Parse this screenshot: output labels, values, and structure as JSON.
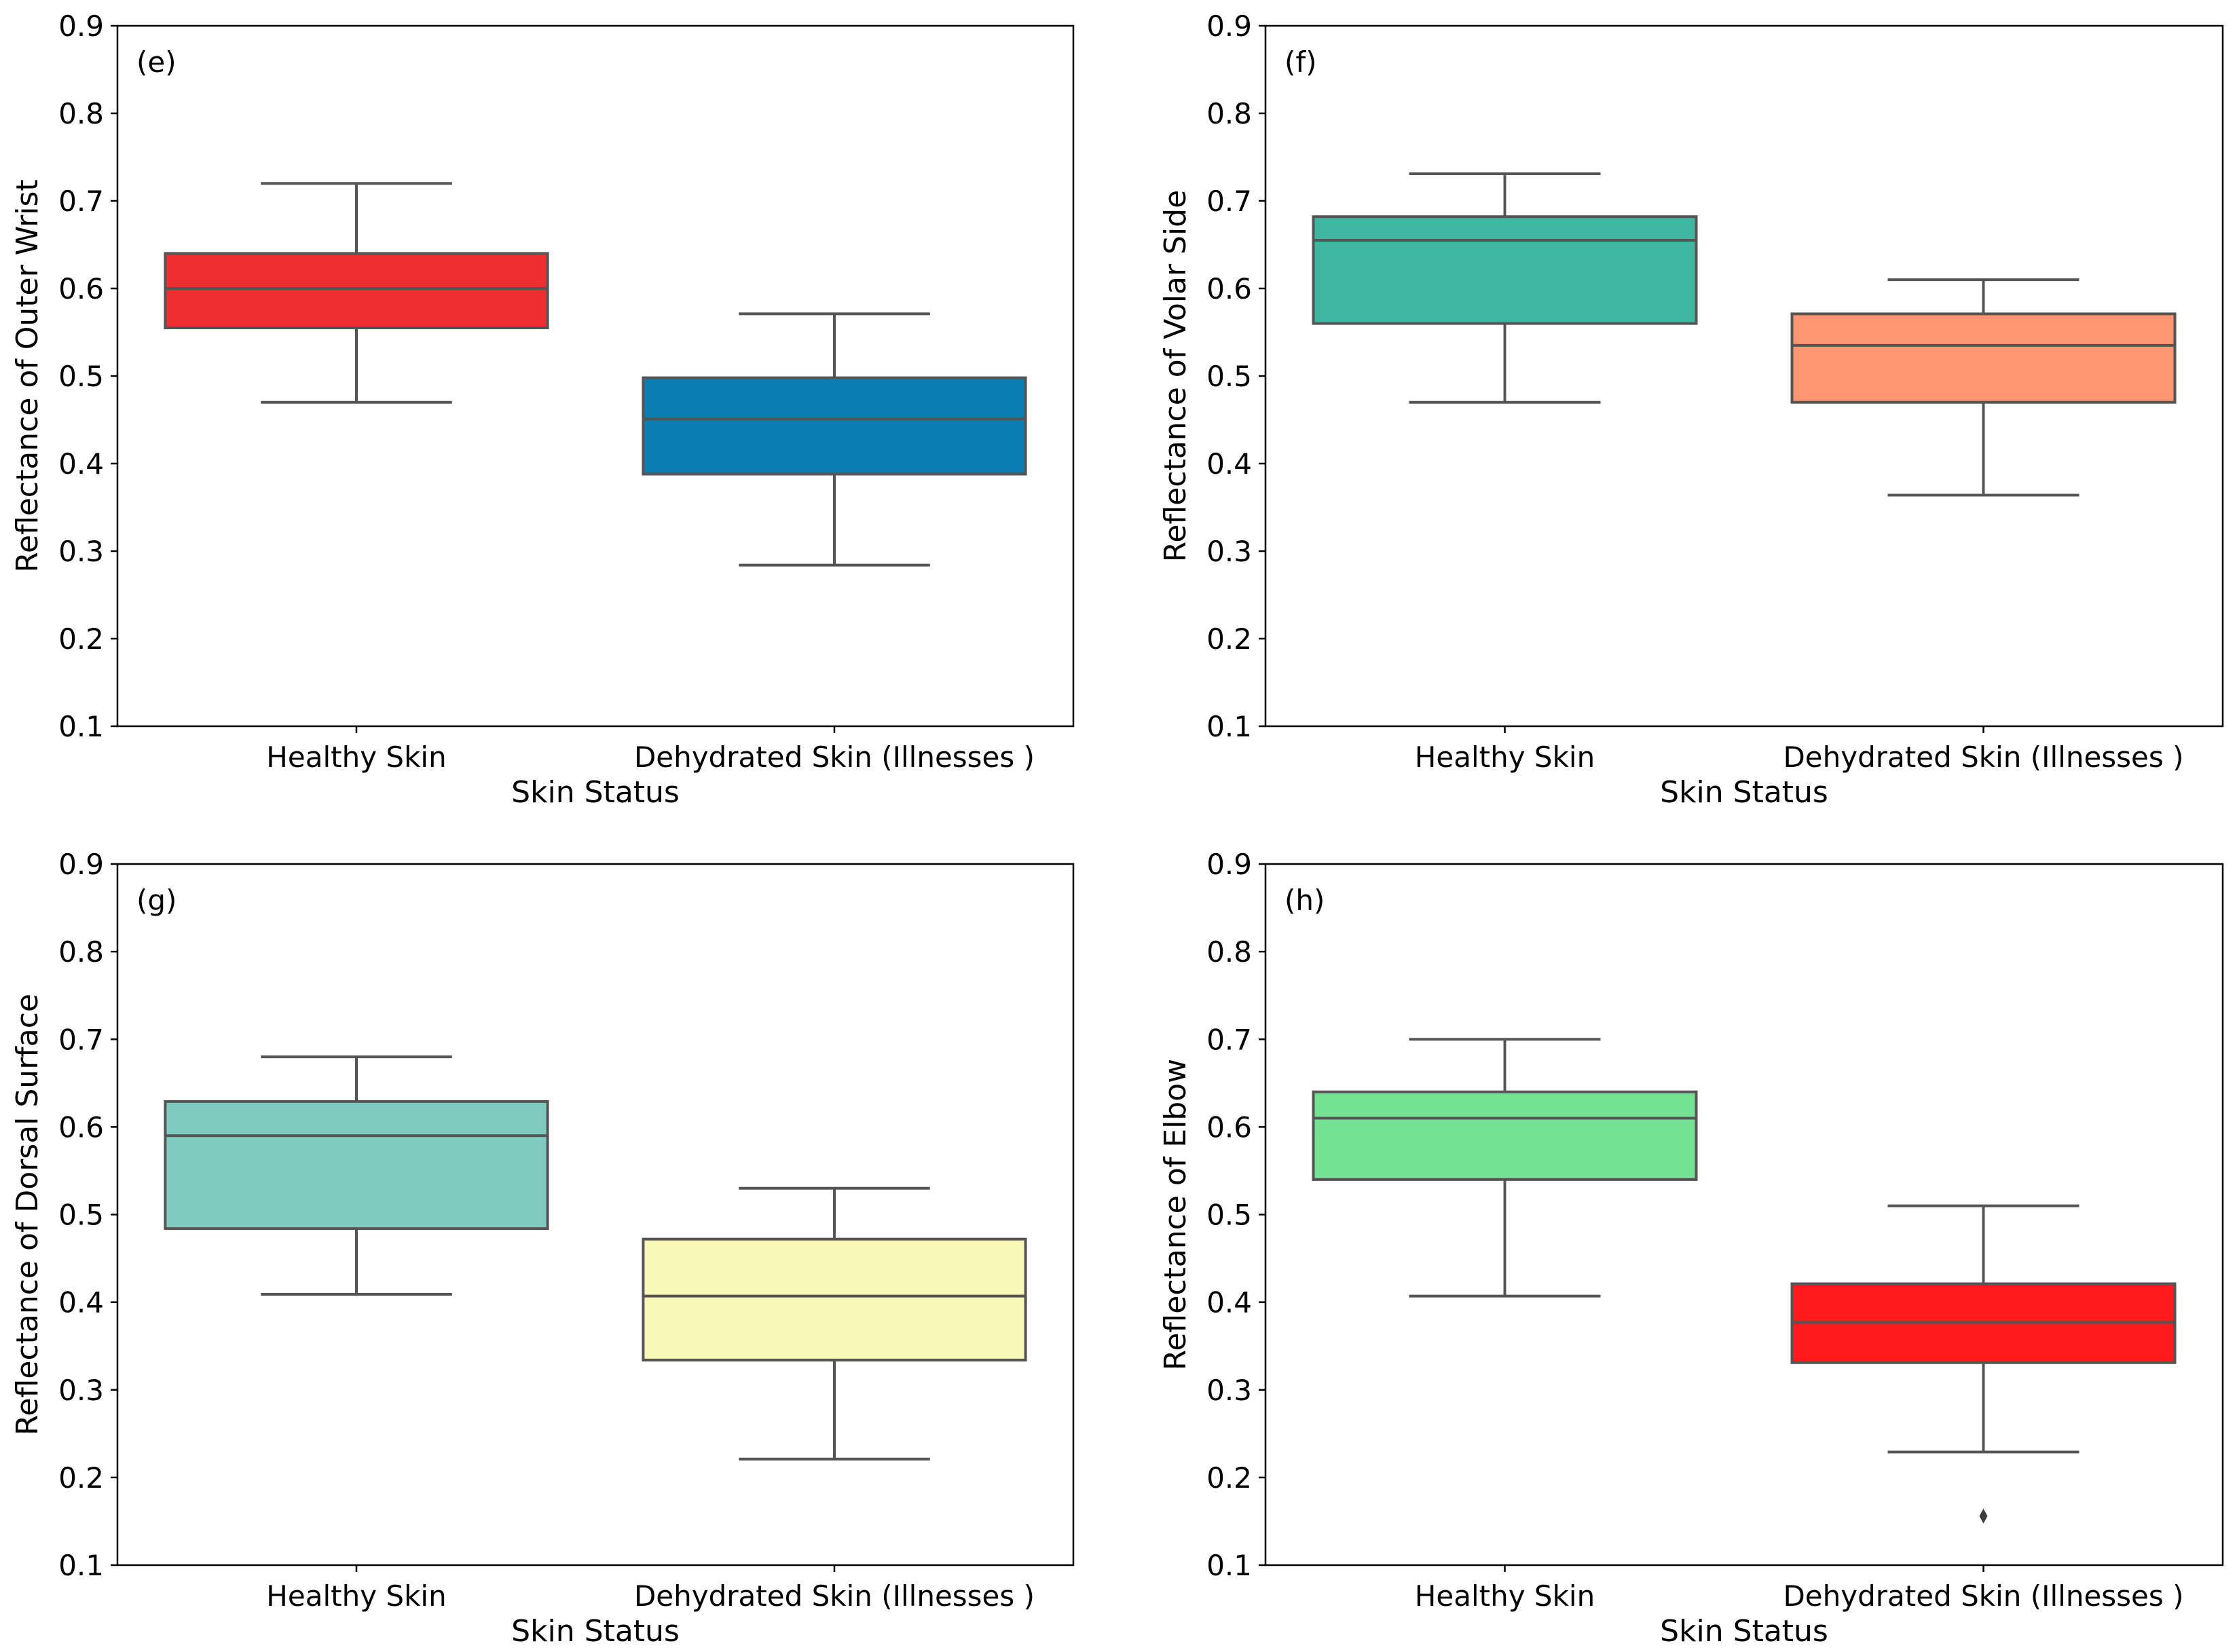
{
  "chart_data": [
    {
      "type": "box",
      "panel_label": "(e)",
      "xlabel": "Skin Status",
      "ylabel": "Reflectance of Outer Wrist",
      "ylim": [
        0.1,
        0.9
      ],
      "yticks": [
        "0.1",
        "0.2",
        "0.3",
        "0.4",
        "0.5",
        "0.6",
        "0.7",
        "0.8",
        "0.9"
      ],
      "categories": [
        "Healthy Skin",
        "Dehydrated Skin (Illnesses )"
      ],
      "boxes": [
        {
          "whisker_low": 0.47,
          "q1": 0.555,
          "median": 0.6,
          "q3": 0.64,
          "whisker_high": 0.72,
          "outliers": [],
          "color": "#ee2e31"
        },
        {
          "whisker_low": 0.284,
          "q1": 0.388,
          "median": 0.451,
          "q3": 0.498,
          "whisker_high": 0.571,
          "outliers": [],
          "color": "#0a7eb0"
        }
      ]
    },
    {
      "type": "box",
      "panel_label": "(f)",
      "xlabel": "Skin Status",
      "ylabel": "Reflectance of Volar Side",
      "ylim": [
        0.1,
        0.9
      ],
      "yticks": [
        "0.1",
        "0.2",
        "0.3",
        "0.4",
        "0.5",
        "0.6",
        "0.7",
        "0.8",
        "0.9"
      ],
      "categories": [
        "Healthy Skin",
        "Dehydrated Skin (Illnesses )"
      ],
      "boxes": [
        {
          "whisker_low": 0.47,
          "q1": 0.56,
          "median": 0.655,
          "q3": 0.682,
          "whisker_high": 0.731,
          "outliers": [],
          "color": "#3fb6a0"
        },
        {
          "whisker_low": 0.364,
          "q1": 0.47,
          "median": 0.535,
          "q3": 0.571,
          "whisker_high": 0.61,
          "outliers": [],
          "color": "#fd9671"
        }
      ]
    },
    {
      "type": "box",
      "panel_label": "(g)",
      "xlabel": "Skin Status",
      "ylabel": "Reflectance of Dorsal Surface",
      "ylim": [
        0.1,
        0.9
      ],
      "yticks": [
        "0.1",
        "0.2",
        "0.3",
        "0.4",
        "0.5",
        "0.6",
        "0.7",
        "0.8",
        "0.9"
      ],
      "categories": [
        "Healthy Skin",
        "Dehydrated Skin (Illnesses )"
      ],
      "boxes": [
        {
          "whisker_low": 0.409,
          "q1": 0.484,
          "median": 0.59,
          "q3": 0.629,
          "whisker_high": 0.68,
          "outliers": [],
          "color": "#7ecbc0"
        },
        {
          "whisker_low": 0.221,
          "q1": 0.334,
          "median": 0.407,
          "q3": 0.472,
          "whisker_high": 0.53,
          "outliers": [],
          "color": "#f7f8b8"
        }
      ]
    },
    {
      "type": "box",
      "panel_label": "(h)",
      "xlabel": "Skin Status",
      "ylabel": "Reflectance of Elbow",
      "ylim": [
        0.1,
        0.9
      ],
      "yticks": [
        "0.1",
        "0.2",
        "0.3",
        "0.4",
        "0.5",
        "0.6",
        "0.7",
        "0.8",
        "0.9"
      ],
      "categories": [
        "Healthy Skin",
        "Dehydrated Skin (Illnesses )"
      ],
      "boxes": [
        {
          "whisker_low": 0.407,
          "q1": 0.54,
          "median": 0.61,
          "q3": 0.64,
          "whisker_high": 0.7,
          "outliers": [],
          "color": "#74e193"
        },
        {
          "whisker_low": 0.229,
          "q1": 0.331,
          "median": 0.377,
          "q3": 0.421,
          "whisker_high": 0.51,
          "outliers": [
            0.156
          ],
          "color": "#ff1b1b"
        }
      ]
    }
  ]
}
